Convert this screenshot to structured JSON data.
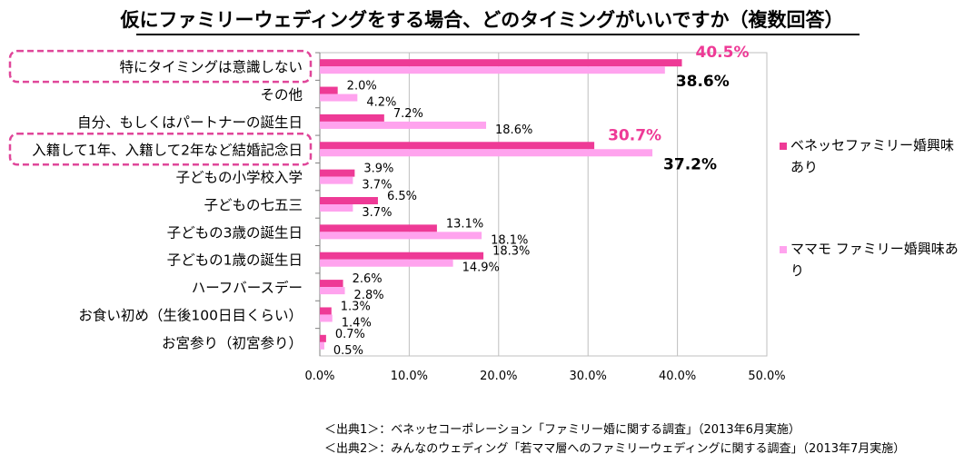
{
  "title": "仮にファミリーウェディングをする場合、どのタイミングがいいですか（複数回答）",
  "sources": [
    "＜出典1＞：ベネッセコーポレーション「ファミリー婚に関する調査」（2013年6月実施）",
    "＜出典2＞：みんなのウェディング「若ママ層へのファミリーウェディングに関する調査」（2013年7月実施）"
  ],
  "colors": {
    "series1": "#ee3a96",
    "series2": "#ffa3ee",
    "highlight_border": "#e0479a",
    "highlight_label": "#ee3a96"
  },
  "highlighted_categories": [
    "特にタイミングは意識しない",
    "入籍して1年、入籍して2年など結婚記念日"
  ],
  "chart_data": {
    "type": "bar",
    "orientation": "horizontal",
    "title": "仮にファミリーウェディングをする場合、どのタイミングがいいですか（複数回答）",
    "categories": [
      "特にタイミングは意識しない",
      "その他",
      "自分、もしくはパートナーの誕生日",
      "入籍して1年、入籍して2年など結婚記念日",
      "子どもの小学校入学",
      "子どもの七五三",
      "子どもの3歳の誕生日",
      "子どもの1歳の誕生日",
      "ハーフバースデー",
      "お食い初め（生後100日目くらい）",
      "お宮参り（初宮参り）"
    ],
    "series": [
      {
        "name": "ベネッセファミリー婚興味あり",
        "values": [
          40.5,
          2.0,
          7.2,
          30.7,
          3.9,
          6.5,
          13.1,
          18.3,
          2.6,
          1.3,
          0.7
        ]
      },
      {
        "name": "ママモ ファミリー婚興味あり",
        "values": [
          38.6,
          4.2,
          18.6,
          37.2,
          3.7,
          3.7,
          18.1,
          14.9,
          2.8,
          1.4,
          0.5
        ]
      }
    ],
    "value_labels": [
      [
        "40.5%",
        "2.0%",
        "7.2%",
        "30.7%",
        "3.9%",
        "6.5%",
        "13.1%",
        "18.3%",
        "2.6%",
        "1.3%",
        "0.7%"
      ],
      [
        "38.6%",
        "4.2%",
        "18.6%",
        "37.2%",
        "3.7%",
        "3.7%",
        "18.1%",
        "14.9%",
        "2.8%",
        "1.4%",
        "0.5%"
      ]
    ],
    "xlim": [
      0,
      50
    ],
    "xticks": [
      "0.0%",
      "10.0%",
      "20.0%",
      "30.0%",
      "40.0%",
      "50.0%"
    ],
    "grid": true,
    "legend": "right"
  }
}
